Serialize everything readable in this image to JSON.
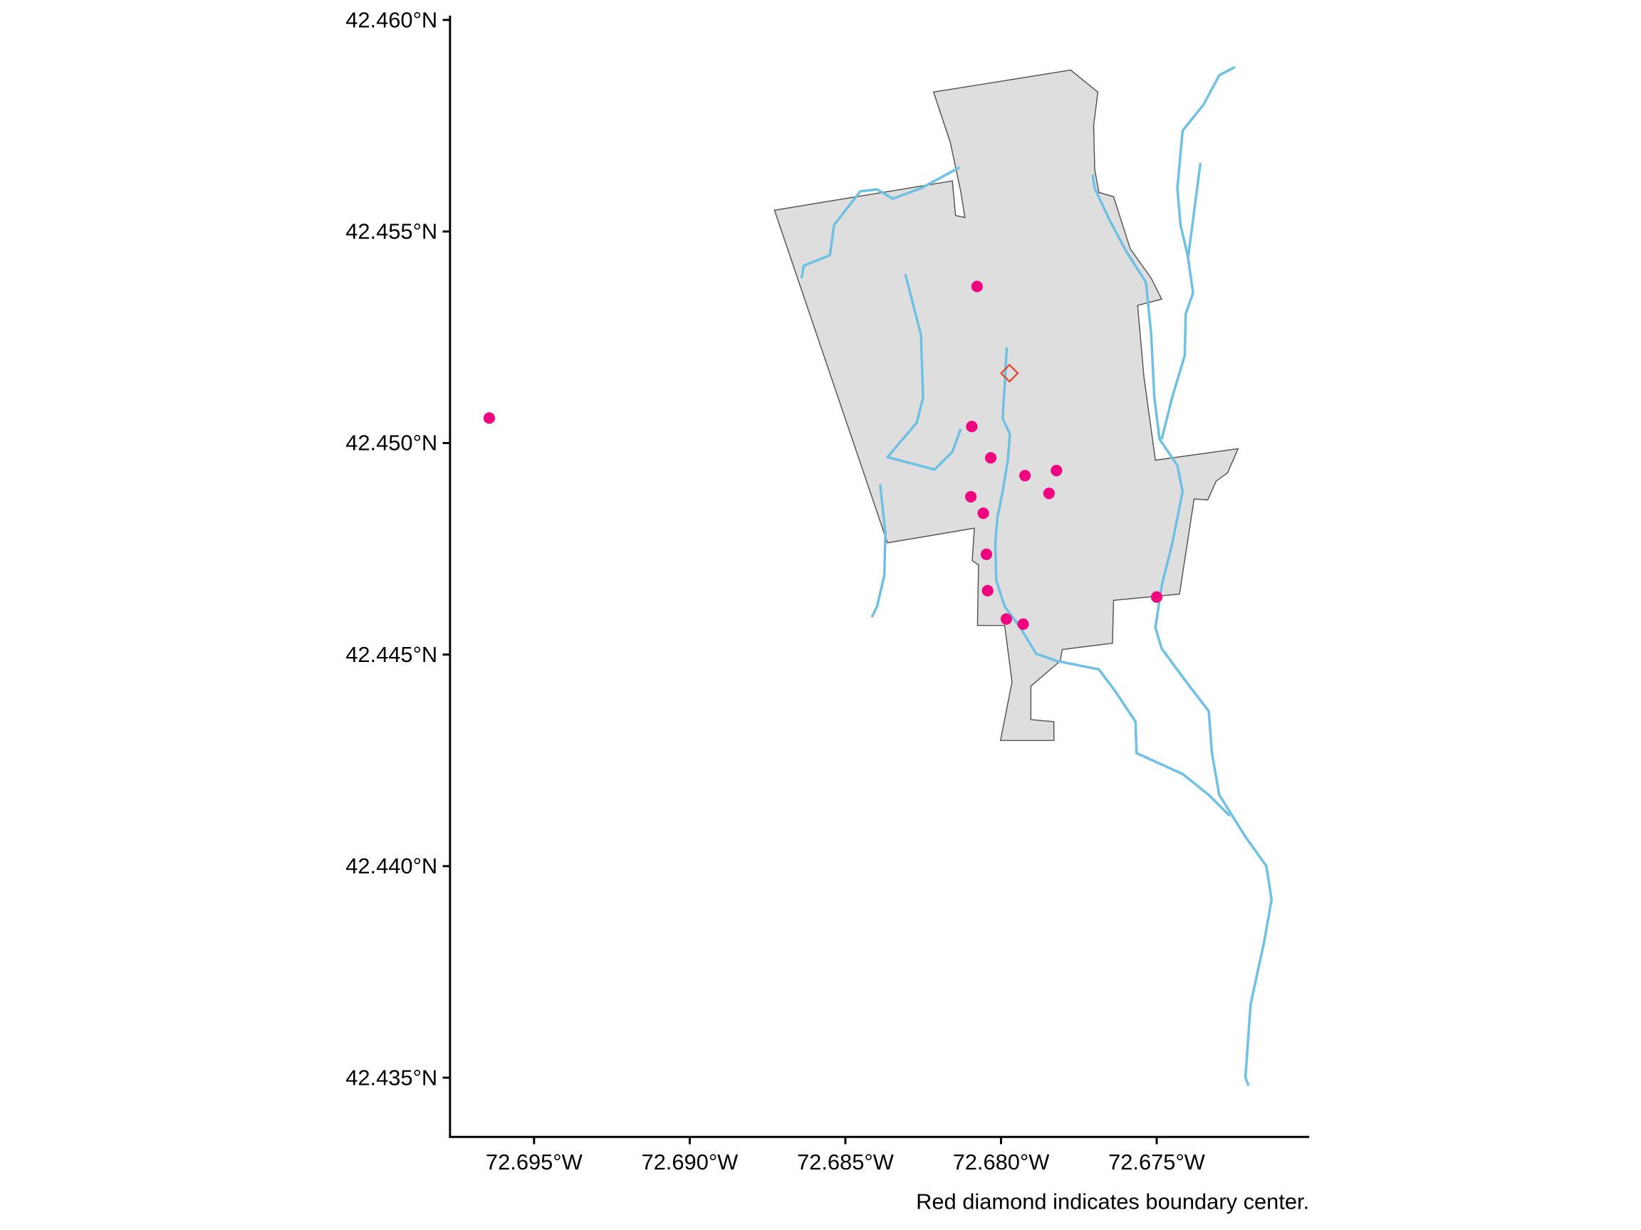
{
  "chart_data": {
    "type": "scatter",
    "caption": "Red diamond indicates boundary center.",
    "xlim": [
      -72.6977,
      -72.6701
    ],
    "ylim": [
      42.4336,
      42.4601
    ],
    "xticks": [
      {
        "value": -72.695,
        "label": "72.695°W"
      },
      {
        "value": -72.69,
        "label": "72.690°W"
      },
      {
        "value": -72.685,
        "label": "72.685°W"
      },
      {
        "value": -72.68,
        "label": "72.680°W"
      },
      {
        "value": -72.675,
        "label": "72.675°W"
      }
    ],
    "yticks": [
      {
        "value": 42.435,
        "label": "42.435°N"
      },
      {
        "value": 42.44,
        "label": "42.440°N"
      },
      {
        "value": 42.445,
        "label": "42.445°N"
      },
      {
        "value": 42.45,
        "label": "42.450°N"
      },
      {
        "value": 42.455,
        "label": "42.455°N"
      },
      {
        "value": 42.46,
        "label": "42.460°N"
      }
    ],
    "points": {
      "color": "#f0047f",
      "x": [
        -72.69644,
        -72.68077,
        -72.68094,
        -72.68033,
        -72.67923,
        -72.67822,
        -72.67846,
        -72.68097,
        -72.68057,
        -72.68047,
        -72.68043,
        -72.67983,
        -72.67929,
        -72.675
      ],
      "y": [
        42.45059,
        42.4537,
        42.45039,
        42.44965,
        42.44923,
        42.44935,
        42.44881,
        42.44873,
        42.44834,
        42.44737,
        42.44651,
        42.44584,
        42.44572,
        42.44636
      ]
    },
    "center": {
      "color": "#e8412c",
      "x": [
        -72.67973
      ],
      "y": [
        42.45165
      ]
    }
  }
}
